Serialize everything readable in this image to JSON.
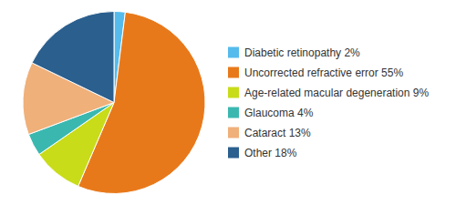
{
  "chart_data": {
    "type": "pie",
    "categories": [
      "Diabetic retinopathy 2%",
      "Uncorrected refractive error 55%",
      "Age-related macular degeneration 9%",
      "Glaucoma 4%",
      "Cataract 13%",
      "Other 18%"
    ],
    "values": [
      2,
      55,
      9,
      4,
      13,
      18
    ],
    "colors": [
      "#55BBEC",
      "#E8791A",
      "#C8DC1A",
      "#3AB8B0",
      "#F0B07A",
      "#2B5F8E"
    ],
    "legend": "right"
  }
}
